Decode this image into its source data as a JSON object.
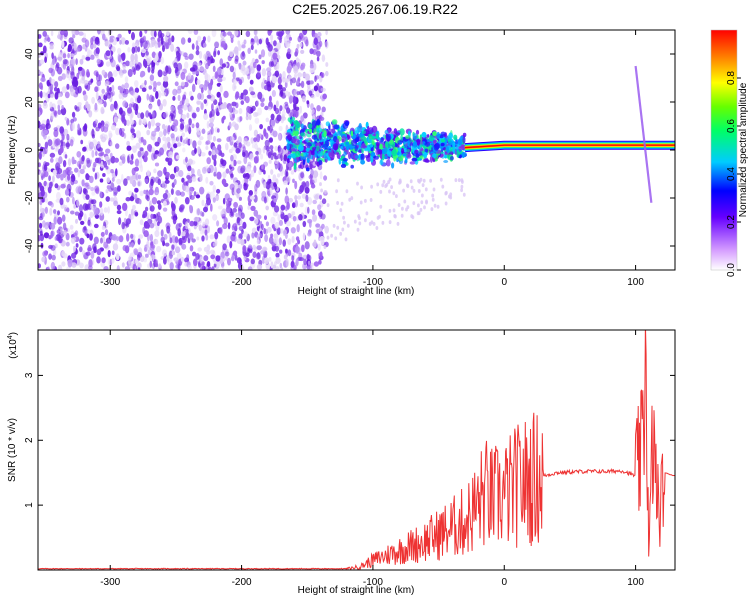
{
  "title": "C2E5.2025.267.06.19.R22",
  "colors": {
    "snr_line": "#ee3333",
    "spectro_primary": "#7a2ee6",
    "spectro_light": "#d9c6f5"
  },
  "chart_data": [
    {
      "type": "heatmap",
      "panel": "spectrogram",
      "xlabel": "Height of straight line (km)",
      "ylabel": "Frequency (Hz)",
      "xlim": [
        -355,
        130
      ],
      "ylim": [
        -50,
        50
      ],
      "xticks": [
        -300,
        -200,
        -100,
        0,
        100
      ],
      "xtick_labels": [
        "-300",
        "-200",
        "-100",
        "0",
        "100"
      ],
      "yticks": [
        -40,
        -20,
        0,
        20,
        40
      ],
      "ytick_labels": [
        "-40",
        "-20",
        "0",
        "20",
        "40"
      ],
      "colorbar": {
        "label": "Normalized spectral amplitude",
        "range": [
          0,
          1
        ],
        "ticks": [
          0.0,
          0.2,
          0.4,
          0.6,
          0.8
        ],
        "tick_labels": [
          "0.0",
          "0.2",
          "0.4",
          "0.6",
          "0.8"
        ],
        "scale": "rainbow (violet → blue → cyan → green → yellow → orange → red)"
      },
      "regions": [
        {
          "x_range": [
            -355,
            -135
          ],
          "freq_range": [
            -50,
            50
          ],
          "amplitude": 0.1,
          "pattern": "noise"
        },
        {
          "x_range": [
            -165,
            -30
          ],
          "freq_range": [
            -12,
            12
          ],
          "amplitude": 0.35,
          "pattern": "scattered signal"
        },
        {
          "x_range": [
            -30,
            130
          ],
          "freq_range": [
            -2,
            4
          ],
          "amplitude": 0.95,
          "pattern": "carrier"
        }
      ],
      "carrier_line": {
        "x": [
          -30,
          0,
          40,
          80,
          100,
          130
        ],
        "freq": [
          1,
          2,
          2,
          2,
          2,
          2
        ]
      },
      "spike": {
        "x": [
          100,
          112
        ],
        "freq": [
          35,
          -22
        ]
      }
    },
    {
      "type": "line",
      "panel": "snr",
      "xlabel": "Height of straight line (km)",
      "ylabel": "SNR (10 * v/v)",
      "y_multiplier": "(x10",
      "y_multiplier_exp": "4",
      "y_multiplier_close": ")",
      "xlim": [
        -355,
        130
      ],
      "ylim": [
        0,
        37000
      ],
      "xticks": [
        -300,
        -200,
        -100,
        0,
        100
      ],
      "xtick_labels": [
        "-300",
        "-200",
        "-100",
        "0",
        "100"
      ],
      "yticks": [
        10000,
        20000,
        30000
      ],
      "ytick_labels": [
        "1",
        "2",
        "3"
      ],
      "series": [
        {
          "x": [
            -355,
            -120,
            -110,
            -100,
            -80,
            -60,
            -40,
            -30,
            -20,
            -15,
            -10,
            0,
            10,
            20,
            40,
            60,
            80,
            90,
            100,
            105,
            108,
            110,
            113,
            118,
            122,
            130
          ],
          "y": [
            200,
            200,
            500,
            1500,
            3000,
            4500,
            6500,
            7500,
            10000,
            12000,
            11000,
            11500,
            13000,
            14000,
            15000,
            15200,
            15200,
            15300,
            14500,
            18000,
            36000,
            1500,
            20000,
            8000,
            15000,
            14500
          ]
        }
      ]
    }
  ]
}
